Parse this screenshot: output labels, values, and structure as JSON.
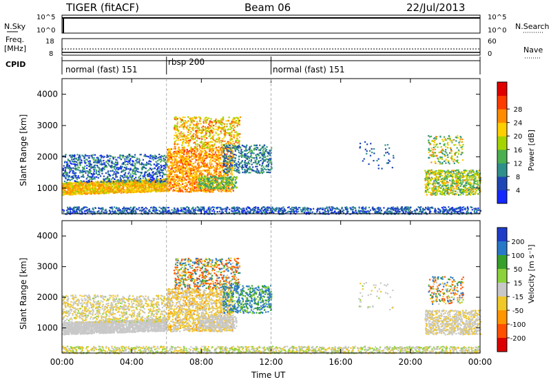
{
  "header": {
    "title": "TIGER (fitACF)",
    "beam": "Beam 06",
    "date": "22/Jul/2013"
  },
  "aux_panels": {
    "nsky": {
      "label": "N.Sky",
      "left_ticks": [
        "10^5",
        "10^0"
      ],
      "right_label": "N.Search",
      "right_ticks": [
        "10^5",
        "10^0"
      ]
    },
    "freq": {
      "label": "Freq.",
      "unit": "[MHz]",
      "left_ticks": [
        "18",
        "8"
      ],
      "right_label": "Nave",
      "right_ticks": [
        "60",
        "0"
      ]
    },
    "cpid": {
      "label": "CPID",
      "segments": [
        {
          "name": "normal (fast) 151",
          "start_hour": 0,
          "end_hour": 6
        },
        {
          "name": "rbsp 200",
          "start_hour": 6,
          "end_hour": 12
        },
        {
          "name": "normal (fast) 151",
          "start_hour": 12,
          "end_hour": 24
        }
      ]
    }
  },
  "chart_data": [
    {
      "type": "heatmap",
      "panel": "power",
      "xlabel": "",
      "ylabel": "Slant Range [km]",
      "xlim": [
        0,
        24
      ],
      "ylim": [
        180,
        4500
      ],
      "y_ticks": [
        1000,
        2000,
        3000,
        4000
      ],
      "colorbar": {
        "label": "Power [dB]",
        "ticks": [
          "4",
          "8",
          "12",
          "16",
          "20",
          "24",
          "28"
        ],
        "colors": [
          "#1428ff",
          "#1e46b4",
          "#2f8f8a",
          "#4caf50",
          "#a6d400",
          "#ffd000",
          "#ff8c00",
          "#ff3c00",
          "#e00000"
        ]
      }
    },
    {
      "type": "heatmap",
      "panel": "velocity",
      "xlabel": "Time UT",
      "ylabel": "Slant Range [km]",
      "xlim": [
        0,
        24
      ],
      "ylim": [
        180,
        4500
      ],
      "x_ticks": [
        "00:00",
        "04:00",
        "08:00",
        "12:00",
        "16:00",
        "20:00",
        "00:00"
      ],
      "y_ticks": [
        1000,
        2000,
        3000,
        4000
      ],
      "colorbar": {
        "label": "Velocity [m s⁻¹]",
        "ticks": [
          "200",
          "100",
          "50",
          "15",
          "-15",
          "-50",
          "-100",
          "-200"
        ],
        "colors": [
          "#1e3cc8",
          "#2878c8",
          "#36a02a",
          "#8cd23c",
          "#c8c8c8",
          "#f0c828",
          "#ff9600",
          "#ff5000",
          "#dc0000"
        ]
      }
    }
  ]
}
